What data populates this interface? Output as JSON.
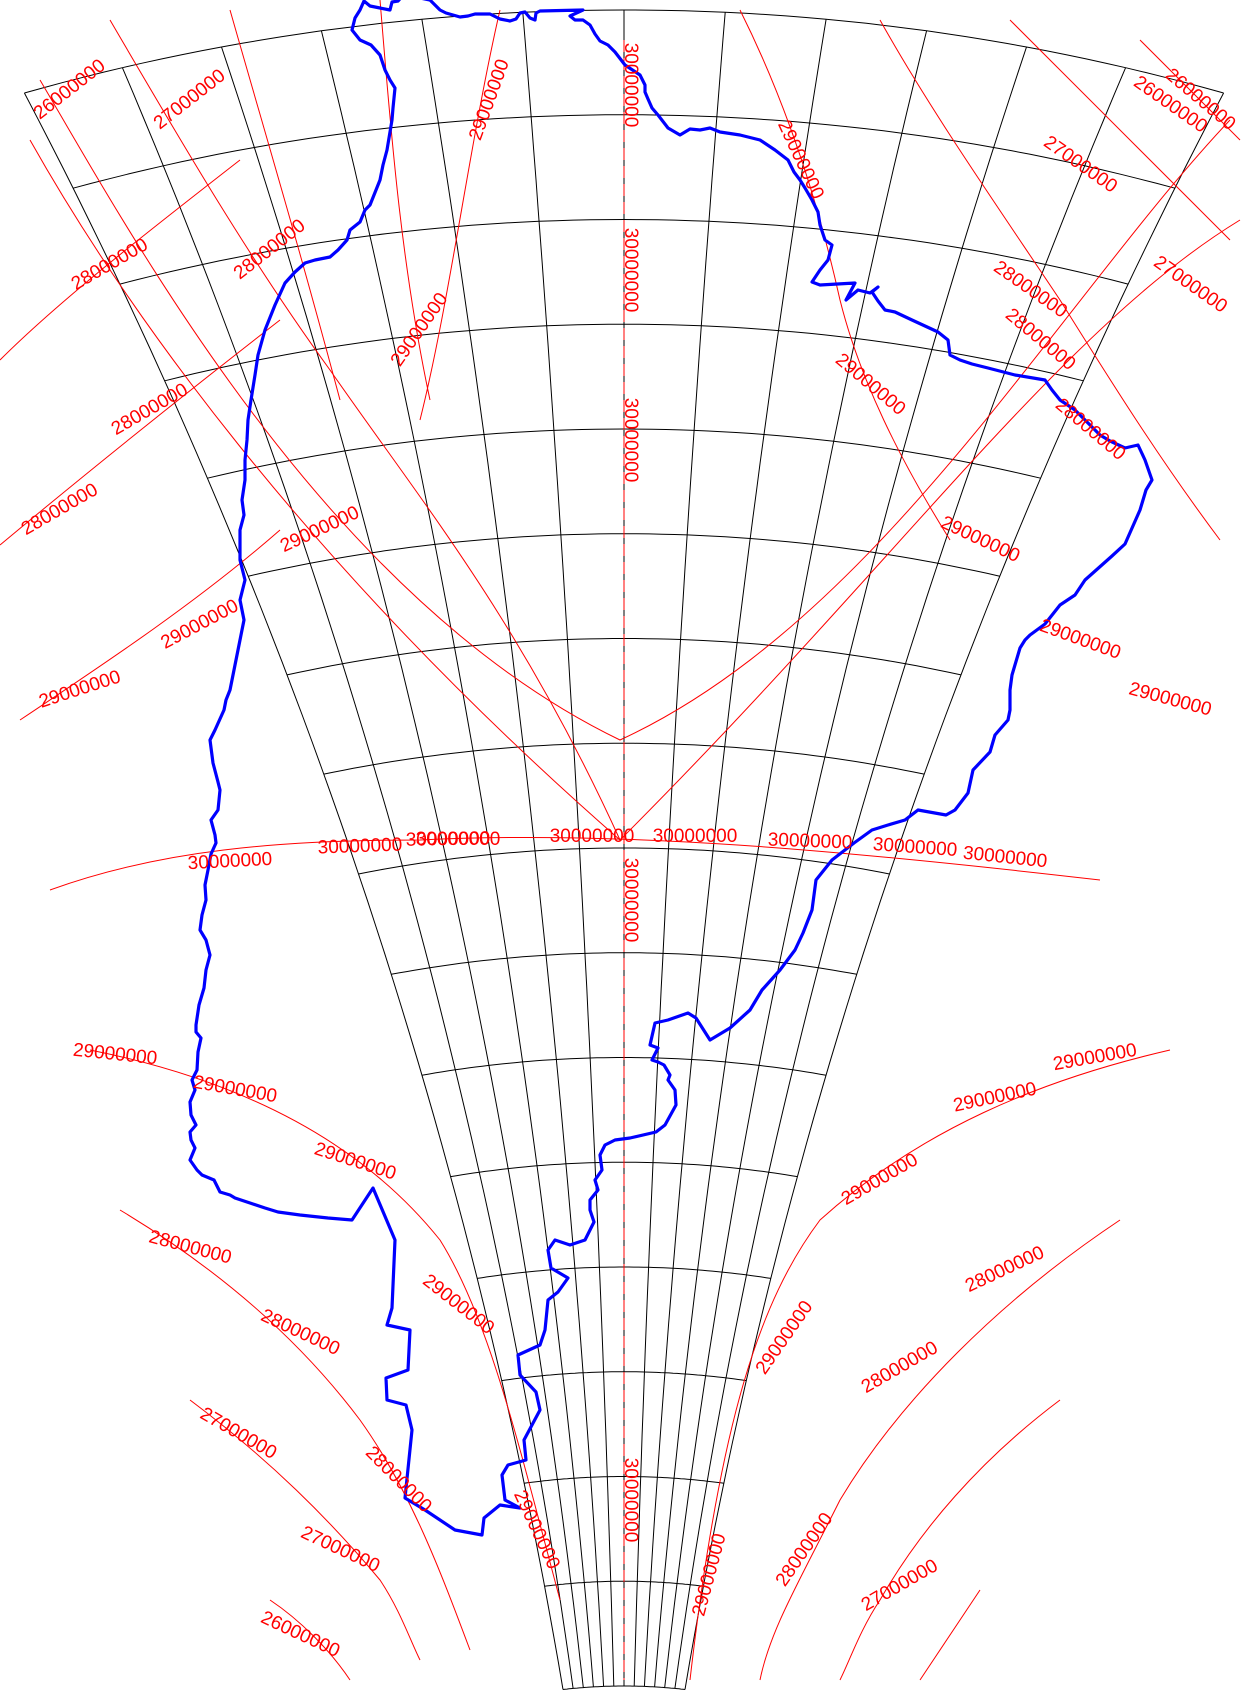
{
  "colors": {
    "graticule": "#000000",
    "contours": "#ff0000",
    "coastline": "#0000ff",
    "background": "#ffffff"
  },
  "contour_labels": [
    {
      "text": "26000000"
    },
    {
      "text": "27000000"
    },
    {
      "text": "29000000"
    },
    {
      "text": "30000000"
    },
    {
      "text": "28000000"
    },
    {
      "text": "29000000"
    },
    {
      "text": "28000000"
    },
    {
      "text": "26000000"
    },
    {
      "text": "27000000"
    },
    {
      "text": "28000000"
    },
    {
      "text": "29000000"
    },
    {
      "text": "30000000"
    },
    {
      "text": "28000000"
    },
    {
      "text": "27000000"
    },
    {
      "text": "28000000"
    },
    {
      "text": "29000000"
    },
    {
      "text": "30000000"
    },
    {
      "text": "28000000"
    },
    {
      "text": "28000000"
    },
    {
      "text": "29000000"
    },
    {
      "text": "29000000"
    },
    {
      "text": "29000000"
    },
    {
      "text": "29000000"
    },
    {
      "text": "29000000"
    },
    {
      "text": "29000000"
    },
    {
      "text": "30000000"
    },
    {
      "text": "30000000"
    },
    {
      "text": "30000000"
    },
    {
      "text": "30000000"
    },
    {
      "text": "30000000"
    },
    {
      "text": "30000000"
    },
    {
      "text": "30000000"
    },
    {
      "text": "30000000"
    },
    {
      "text": "30000000"
    },
    {
      "text": "30000000"
    },
    {
      "text": "29000000"
    },
    {
      "text": "29000000"
    },
    {
      "text": "29000000"
    },
    {
      "text": "29000000"
    },
    {
      "text": "29000000"
    },
    {
      "text": "29000000"
    },
    {
      "text": "28000000"
    },
    {
      "text": "29000000"
    },
    {
      "text": "28000000"
    },
    {
      "text": "29000000"
    },
    {
      "text": "28000000"
    },
    {
      "text": "28000000"
    },
    {
      "text": "27000000"
    },
    {
      "text": "28000000"
    },
    {
      "text": "27000000"
    },
    {
      "text": "29000000"
    },
    {
      "text": "30000000"
    },
    {
      "text": "29000000"
    },
    {
      "text": "28000000"
    },
    {
      "text": "27000000"
    },
    {
      "text": "26000000"
    },
    {
      "text": "26000000"
    }
  ]
}
